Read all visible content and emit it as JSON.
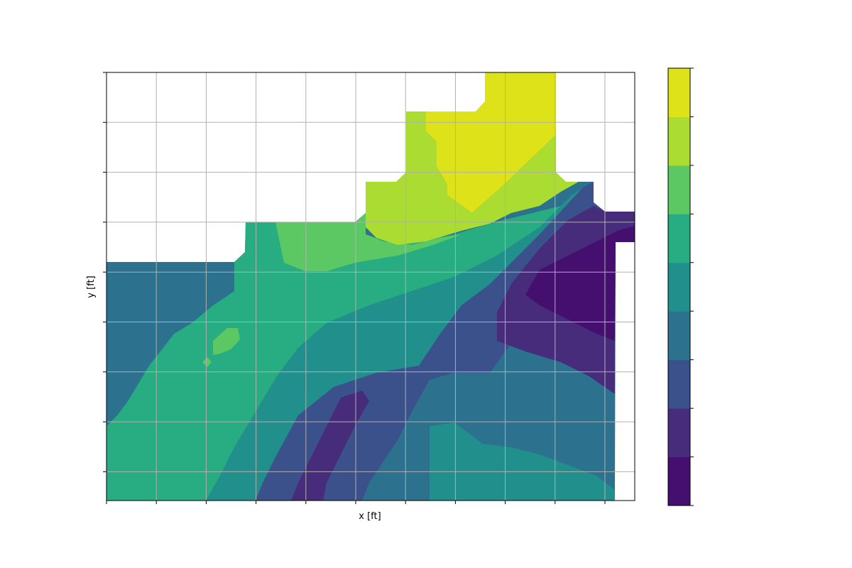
{
  "chart_data": {
    "type": "contour",
    "title": "",
    "xlabel": "x [ft]",
    "ylabel": "y [ft]",
    "grid": true,
    "x_tick_count": 11,
    "y_tick_count": 9,
    "tick_labels_visible": false,
    "colormap": "viridis",
    "levels": 9,
    "colorbar": {
      "present": true,
      "bands": [
        {
          "color": "#440f6f"
        },
        {
          "color": "#472c7b"
        },
        {
          "color": "#3b518b"
        },
        {
          "color": "#2c718e"
        },
        {
          "color": "#21908d"
        },
        {
          "color": "#27ad81"
        },
        {
          "color": "#5cc863"
        },
        {
          "color": "#aadc32"
        },
        {
          "color": "#dde318"
        }
      ]
    }
  }
}
